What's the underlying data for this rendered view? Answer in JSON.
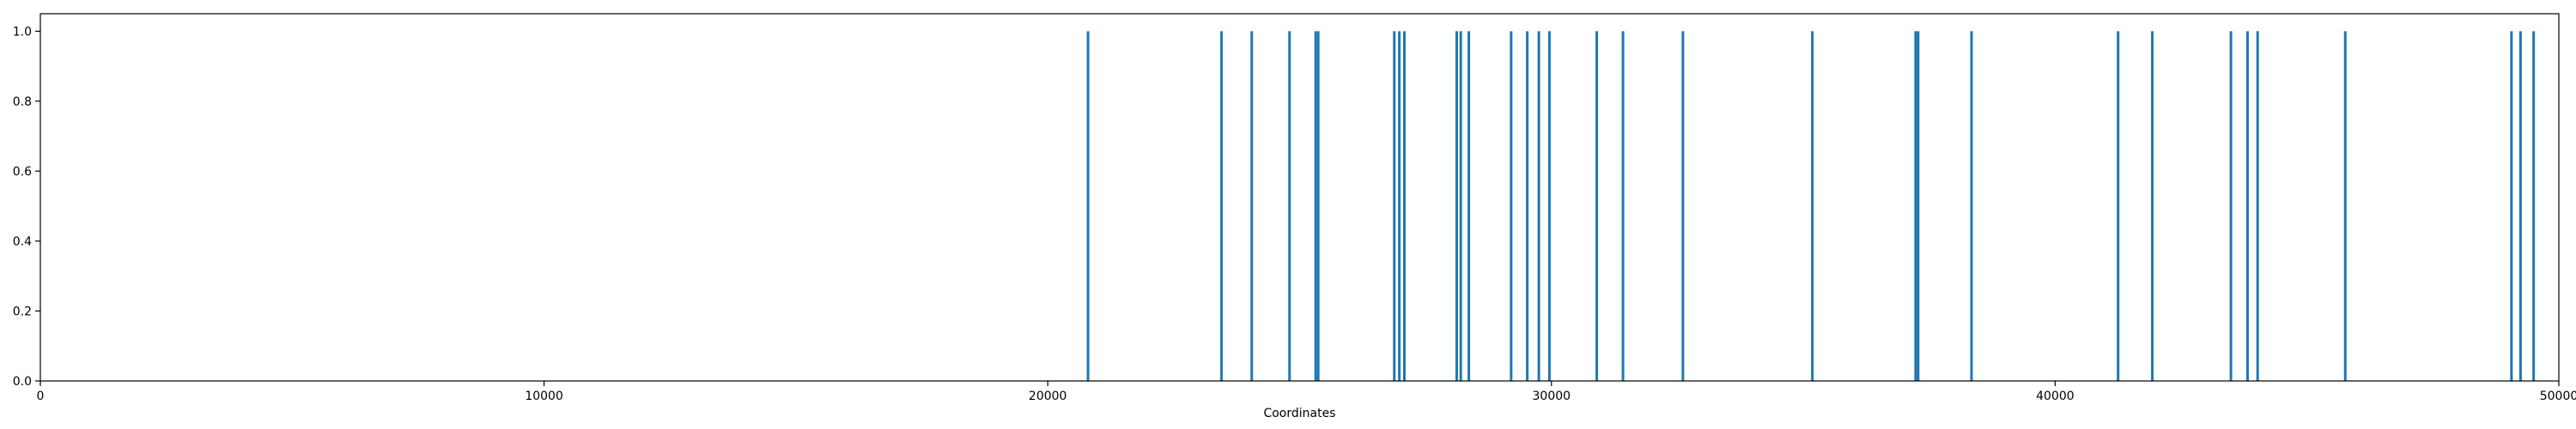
{
  "chart_data": {
    "type": "bar",
    "xlabel": "Coordinates",
    "ylabel": "",
    "xlim": [
      0,
      50000
    ],
    "ylim": [
      0,
      1.05
    ],
    "grid": false,
    "bar_color": "#1f77b4",
    "x_ticks": [
      0,
      10000,
      20000,
      30000,
      40000,
      50000
    ],
    "y_ticks": [
      0.0,
      0.2,
      0.4,
      0.6,
      0.8,
      1.0
    ],
    "x_tick_labels": [
      "0",
      "10000",
      "20000",
      "30000",
      "40000",
      "50000"
    ],
    "y_tick_labels": [
      "0.0",
      "0.2",
      "0.4",
      "0.6",
      "0.8",
      "1.0"
    ],
    "x": [
      20800,
      23450,
      24050,
      24800,
      25320,
      25370,
      26880,
      26980,
      27080,
      28120,
      28200,
      28360,
      29200,
      29520,
      29750,
      29960,
      30900,
      31420,
      32610,
      35180,
      37230,
      37280,
      38340,
      41250,
      41930,
      43490,
      43820,
      44020,
      45760,
      49060,
      49240,
      49500
    ],
    "values": [
      1,
      1,
      1,
      1,
      1,
      1,
      1,
      1,
      1,
      1,
      1,
      1,
      1,
      1,
      1,
      1,
      1,
      1,
      1,
      1,
      1,
      1,
      1,
      1,
      1,
      1,
      1,
      1,
      1,
      1,
      1,
      1
    ]
  }
}
